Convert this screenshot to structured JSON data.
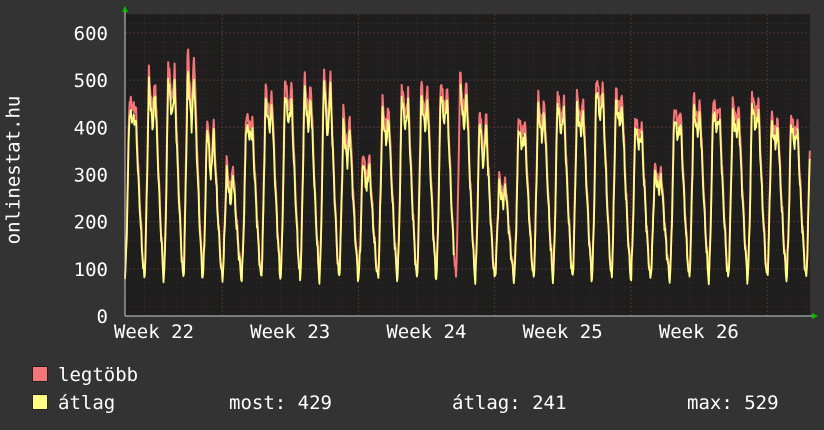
{
  "side_label": "onlinestat.hu",
  "colors": {
    "background": "#333333",
    "plot_background": "#1e1e1e",
    "legtobb": "#f87477",
    "atlag": "#ffff80",
    "grid": "#5a3333",
    "arrow": "#00c000"
  },
  "legend": [
    {
      "name": "legtöbb",
      "color": "#f87477"
    },
    {
      "name": "átlag",
      "color": "#ffff80"
    }
  ],
  "stats": {
    "most": "most: 429",
    "atlag": "átlag: 241",
    "max": "max: 529"
  },
  "chart_data": {
    "type": "line",
    "title": "",
    "xlabel": "",
    "ylabel": "",
    "x_unit": "days",
    "x_range": [
      0,
      35.2
    ],
    "ylim": [
      0,
      640
    ],
    "yticks": [
      0,
      100,
      200,
      300,
      400,
      500,
      600
    ],
    "xticks": [
      {
        "label": "Week 22",
        "day": 2
      },
      {
        "label": "Week 23",
        "day": 9
      },
      {
        "label": "Week 24",
        "day": 16
      },
      {
        "label": "Week 25",
        "day": 23
      },
      {
        "label": "Week 26",
        "day": 30
      }
    ],
    "grid": true,
    "legend_position": "bottom-left",
    "daily_min_atlag": 78,
    "series": [
      {
        "name": "legtöbb",
        "daily_peaks": [
          460,
          520,
          540,
          575,
          430,
          330,
          430,
          490,
          510,
          510,
          535,
          440,
          355,
          460,
          490,
          500,
          505,
          515,
          450,
          300,
          425,
          470,
          480,
          470,
          515,
          480,
          420,
          320,
          450,
          465,
          460,
          455,
          475,
          430
        ],
        "daily_second_peaks": [
          440,
          420,
          450,
          420,
          300,
          250,
          400,
          420,
          430,
          420,
          390,
          340,
          280,
          390,
          420,
          420,
          430,
          420,
          330,
          250,
          380,
          400,
          410,
          410,
          440,
          430,
          380,
          280,
          400,
          410,
          420,
          410,
          420,
          380
        ]
      },
      {
        "name": "átlag",
        "daily_peaks": [
          430,
          495,
          505,
          525,
          410,
          310,
          405,
          460,
          475,
          480,
          510,
          410,
          335,
          435,
          465,
          470,
          480,
          490,
          425,
          285,
          400,
          445,
          455,
          445,
          490,
          455,
          400,
          305,
          425,
          440,
          435,
          430,
          450,
          410
        ],
        "daily_second_peaks": [
          415,
          395,
          420,
          400,
          285,
          235,
          380,
          395,
          405,
          395,
          370,
          320,
          265,
          365,
          395,
          395,
          405,
          395,
          310,
          235,
          355,
          375,
          385,
          385,
          415,
          405,
          360,
          265,
          375,
          385,
          395,
          385,
          395,
          360
        ]
      }
    ],
    "gaps": [
      {
        "series": "átlag",
        "from_day": 16.9,
        "to_day": 17.2
      }
    ]
  }
}
